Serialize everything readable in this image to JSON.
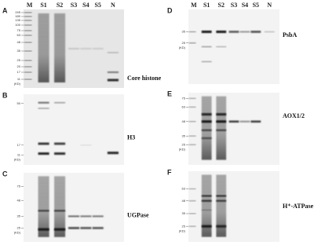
{
  "panels": [
    {
      "letter": "A",
      "lanes": [
        "M",
        "S1",
        "S2",
        "S3",
        "S4",
        "S5",
        "N"
      ],
      "markers": [
        "245",
        "180",
        "135",
        "100",
        "75",
        "63",
        "48",
        "35",
        "25",
        "20",
        "17",
        "11"
      ],
      "unit": "(KD)",
      "protein": "Core histone"
    },
    {
      "letter": "B",
      "markers": [
        "50",
        "17",
        "11"
      ],
      "unit": "(KD)",
      "protein": "H3"
    },
    {
      "letter": "C",
      "markers": [
        "75",
        "48",
        "35",
        "25"
      ],
      "unit": "(KD)",
      "protein": "UGPase"
    },
    {
      "letter": "D",
      "lanes": [
        "M",
        "S1",
        "S2",
        "S3",
        "S4",
        "S5",
        "N"
      ],
      "markers": [
        "35",
        "25"
      ],
      "unit": "(KD)",
      "protein": "PsbA"
    },
    {
      "letter": "E",
      "markers": [
        "75",
        "63",
        "48",
        "35",
        "25"
      ],
      "unit": "(KD)",
      "protein": "AOX1/2"
    },
    {
      "letter": "F",
      "markers": [
        "63",
        "48",
        "35",
        "25"
      ],
      "unit": "(KD)",
      "protein": "H⁺-ATPase"
    }
  ]
}
